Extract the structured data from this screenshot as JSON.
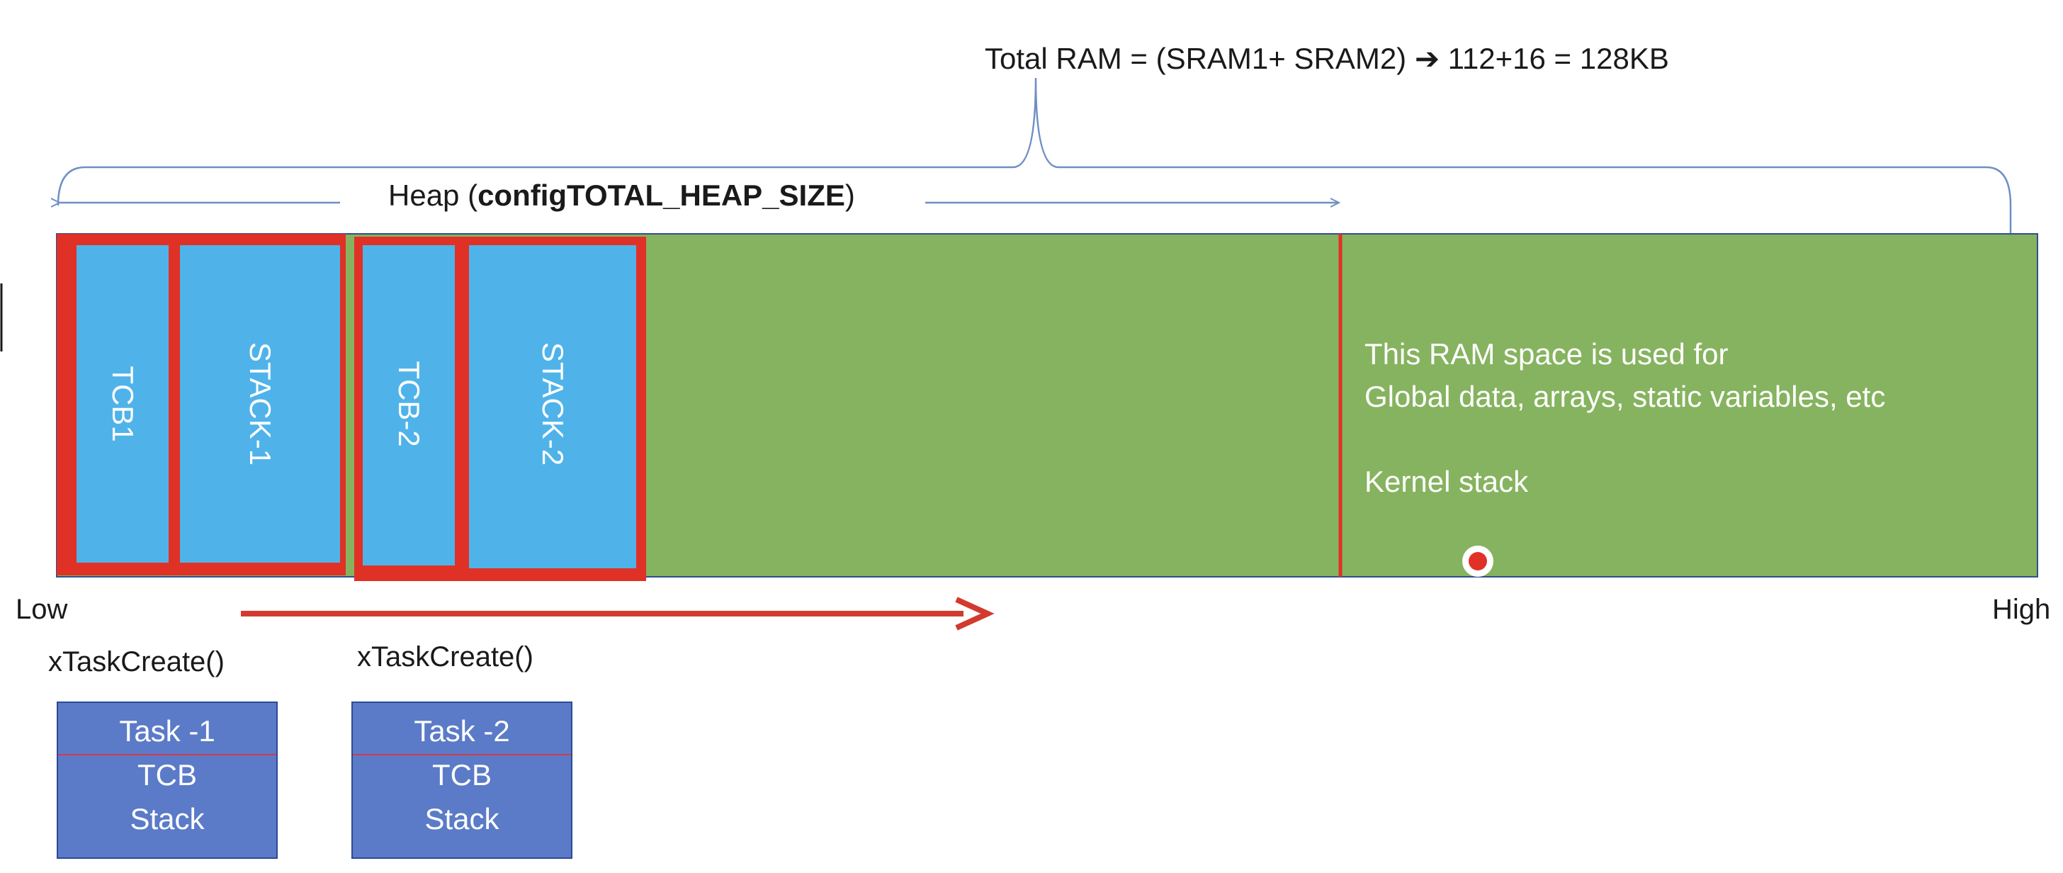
{
  "title": "Total RAM = (SRAM1+ SRAM2) ➔ 112+16 = 128KB",
  "heap": {
    "prefix": "Heap (",
    "bold": "configTOTAL_HEAP_SIZE",
    "suffix": ")"
  },
  "blocks": {
    "tcb1": "TCB1",
    "stack1": "STACK-1",
    "tcb2": "TCB-2",
    "stack2": "STACK-2"
  },
  "ram_note": {
    "line1": "This RAM space is used for",
    "line2": "Global data, arrays, static variables, etc",
    "line3": "Kernel stack"
  },
  "axis": {
    "low": "Low",
    "high": "High"
  },
  "tasks": [
    {
      "call": "xTaskCreate()",
      "name": "Task -1",
      "tcb": "TCB",
      "stack": "Stack"
    },
    {
      "call": "xTaskCreate()",
      "name": "Task -2",
      "tcb": "TCB",
      "stack": "Stack"
    }
  ],
  "colors": {
    "ram_green": "#86b35f",
    "block_blue": "#4fb3ea",
    "frame_red": "#e03127",
    "task_blue": "#5b7bc8",
    "bracket_blue": "#6f8fc4"
  }
}
